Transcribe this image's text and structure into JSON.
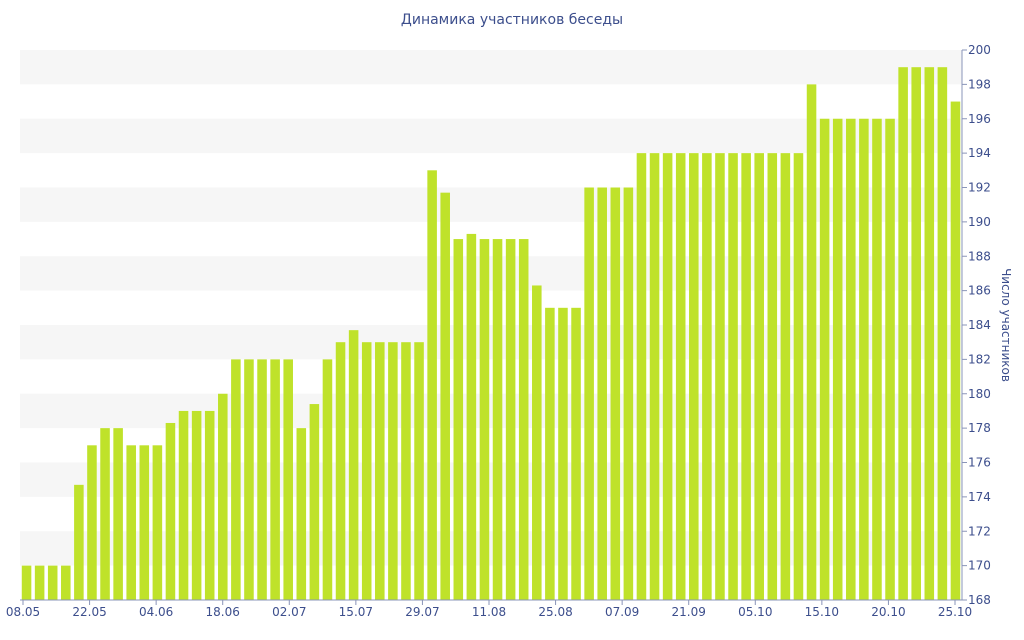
{
  "chart_data": {
    "type": "bar",
    "title": "Динамика участников беседы",
    "xlabel": "",
    "ylabel": "Число участников",
    "ylim": [
      168,
      200
    ],
    "yticks": [
      168,
      170,
      172,
      174,
      176,
      178,
      180,
      182,
      184,
      186,
      188,
      190,
      192,
      194,
      196,
      198,
      200
    ],
    "y_axis_side": "right",
    "grid": "alternating horizontal bands",
    "bar_color": "#bfe22a",
    "band_color": "#f6f6f6",
    "text_color": "#3c4e8c",
    "xticks": [
      "08.05",
      "22.05",
      "04.06",
      "18.06",
      "02.07",
      "15.07",
      "29.07",
      "11.08",
      "25.08",
      "07.09",
      "21.09",
      "05.10",
      "15.10",
      "20.10",
      "25.10"
    ],
    "values": [
      170,
      170,
      170,
      170,
      174.7,
      177,
      178,
      178,
      177,
      177,
      177,
      178.3,
      179,
      179,
      179,
      180,
      182,
      182,
      182,
      182,
      182,
      178,
      179.4,
      182,
      183,
      183.7,
      183,
      183,
      183,
      183,
      183,
      193,
      191.7,
      189,
      189.3,
      189,
      189,
      189,
      189,
      186.3,
      185,
      185,
      185,
      192,
      192,
      192,
      192,
      194,
      194,
      194,
      194,
      194,
      194,
      194,
      194,
      194,
      194,
      194,
      194,
      194,
      198,
      196,
      196,
      196,
      196,
      196,
      196,
      199,
      199,
      199,
      199,
      197
    ]
  }
}
